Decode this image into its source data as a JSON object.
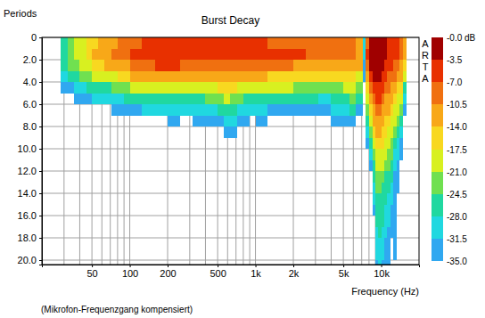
{
  "chart_data": {
    "type": "heatmap",
    "title": "Burst Decay",
    "x_label": "Frequency (Hz)",
    "y_label": "Periods",
    "annotation": "ARTA",
    "footnote": "(Mikrofon-Frequenzgang kompensiert)",
    "log": "x",
    "grid": true,
    "xlim": [
      20,
      20000
    ],
    "xticks": [
      50,
      100,
      200,
      500,
      {
        "value": 1000,
        "label": "1k"
      },
      {
        "value": 2000,
        "label": "2k"
      },
      {
        "value": 5000,
        "label": "5k"
      },
      {
        "value": 10000,
        "label": "10k"
      }
    ],
    "x_minor_ticks": [
      30,
      40,
      60,
      70,
      80,
      90,
      300,
      400,
      600,
      700,
      800,
      900,
      3000,
      4000,
      6000,
      7000,
      8000,
      9000
    ],
    "ylim": [
      0,
      20.4
    ],
    "yticks": [
      0,
      {
        "value": 2,
        "label": "2.0"
      },
      {
        "value": 4,
        "label": "4.0"
      },
      {
        "value": 6,
        "label": "6.0"
      },
      {
        "value": 8,
        "label": "8.0"
      },
      {
        "value": 10,
        "label": "10.0"
      },
      {
        "value": 12,
        "label": "12.0"
      },
      {
        "value": 14,
        "label": "14.0"
      },
      {
        "value": 16,
        "label": "16.0"
      },
      {
        "value": 18,
        "label": "18.0"
      },
      {
        "value": 20,
        "label": "20.0"
      }
    ],
    "freq_edges": [
      28,
      32,
      36,
      40,
      45,
      50,
      56,
      63,
      71,
      80,
      90,
      100,
      125,
      160,
      200,
      250,
      315,
      400,
      500,
      560,
      630,
      710,
      800,
      900,
      1000,
      1250,
      1600,
      2000,
      2500,
      3150,
      4000,
      5000,
      5600,
      6300,
      7100,
      7500,
      8000,
      8500,
      9000,
      9500,
      10000,
      10600,
      11200,
      11800,
      12500,
      13200,
      14000,
      15000,
      16000
    ],
    "period_edges": [
      0,
      1,
      2,
      3,
      4,
      5,
      6,
      7,
      8,
      9,
      10,
      11,
      12,
      13,
      14,
      15,
      16,
      17,
      18,
      19,
      20,
      21
    ],
    "levels": [
      [
        -26,
        -25,
        -27,
        -30,
        -33
      ],
      [
        -23,
        -22,
        -24,
        -28,
        -32
      ],
      [
        -21,
        -20,
        -22,
        -26,
        -30,
        -34
      ],
      [
        -19,
        -18,
        -20,
        -24,
        -29,
        -33
      ],
      [
        -17,
        -16,
        -18,
        -23,
        -28,
        -32
      ],
      [
        -15,
        -14,
        -16,
        -21,
        -27,
        -31
      ],
      [
        -13,
        -12,
        -15,
        -20,
        -26,
        -31
      ],
      [
        -12,
        -11,
        -14,
        -19,
        -25,
        -30
      ],
      [
        -11,
        -10,
        -13,
        -18,
        -24,
        -30,
        -34
      ],
      [
        -10,
        -9,
        -12,
        -17,
        -23,
        -29,
        -33
      ],
      [
        -9,
        -8,
        -11,
        -16,
        -22,
        -28,
        -33
      ],
      [
        -8,
        -6,
        -9,
        -14,
        -20,
        -27,
        -32
      ],
      [
        -7,
        -5,
        -8,
        -13,
        -19,
        -26,
        -31
      ],
      [
        -6,
        -4,
        -7,
        -12,
        -18,
        -25,
        -31
      ],
      [
        -6,
        -4,
        -7,
        -12,
        -18,
        -25,
        -30,
        -34
      ],
      [
        -7,
        -5,
        -8,
        -13,
        -19,
        -26,
        -31
      ],
      [
        -7,
        -5,
        -8,
        -13,
        -19,
        -25,
        -30,
        -34
      ],
      [
        -7,
        -5,
        -8,
        -13,
        -18,
        -24,
        -29,
        -33
      ],
      [
        -7,
        -5,
        -8,
        -12,
        -17,
        -23,
        -28,
        -32
      ],
      [
        -7,
        -5,
        -8,
        -12,
        -16,
        -21,
        -26,
        -30,
        -34
      ],
      [
        -7,
        -5,
        -8,
        -12,
        -17,
        -22,
        -27,
        -31,
        -34
      ],
      [
        -7,
        -5,
        -8,
        -13,
        -18,
        -24,
        -29,
        -33
      ],
      [
        -7,
        -6,
        -9,
        -13,
        -19,
        -25,
        -30,
        -34
      ],
      [
        -7,
        -6,
        -9,
        -14,
        -20,
        -26,
        -31
      ],
      [
        -7,
        -6,
        -9,
        -14,
        -20,
        -26,
        -31,
        -34
      ],
      [
        -8,
        -6,
        -10,
        -15,
        -21,
        -27,
        -32
      ],
      [
        -8,
        -7,
        -10,
        -15,
        -21,
        -27,
        -32
      ],
      [
        -9,
        -7,
        -11,
        -16,
        -22,
        -28,
        -33
      ],
      [
        -9,
        -8,
        -11,
        -16,
        -22,
        -28,
        -33
      ],
      [
        -10,
        -8,
        -12,
        -17,
        -23,
        -29,
        -33
      ],
      [
        -10,
        -9,
        -12,
        -17,
        -22,
        -27,
        -31,
        -34
      ],
      [
        -9,
        -8,
        -11,
        -15,
        -20,
        -25,
        -29,
        -33
      ],
      [
        -9,
        -8,
        -11,
        -15,
        -19,
        -24,
        -28,
        -32
      ],
      [
        -12,
        -11,
        -14,
        -18,
        -23,
        -28,
        -33
      ],
      [
        -31,
        -30,
        -32,
        -34
      ],
      [
        -8,
        -6,
        -8,
        -11,
        -15,
        -19,
        -23,
        -27,
        -31,
        -34
      ],
      [
        -3,
        -2,
        -3,
        -5,
        -8,
        -11,
        -15,
        -19,
        -23,
        -27,
        -30,
        -33
      ],
      [
        -1,
        -1,
        -1,
        -3,
        -5,
        -8,
        -11,
        -14,
        -17,
        -20,
        -23,
        -25,
        -27,
        -29,
        -31,
        -33
      ],
      [
        -1,
        0,
        -1,
        -2,
        -4,
        -6,
        -8,
        -11,
        -13,
        -16,
        -18,
        -20,
        -22,
        -24,
        -26,
        -27,
        -28,
        -29,
        -30,
        -31,
        -32
      ],
      [
        -1,
        -1,
        -2,
        -3,
        -5,
        -7,
        -9,
        -11,
        -14,
        -16,
        -18,
        -20,
        -22,
        -24,
        -25,
        -26,
        -27,
        -28,
        -29,
        -30,
        -31
      ],
      [
        -2,
        -2,
        -3,
        -5,
        -7,
        -9,
        -11,
        -13,
        -15,
        -17,
        -19,
        -21,
        -23,
        -25,
        -26,
        -27,
        -28,
        -29,
        -30,
        -31,
        -32
      ],
      [
        -3,
        -3,
        -5,
        -7,
        -9,
        -11,
        -13,
        -15,
        -17,
        -19,
        -21,
        -23,
        -25,
        -27,
        -28,
        -29,
        -30,
        -31,
        -32,
        -33,
        -34
      ],
      [
        -4,
        -4,
        -6,
        -8,
        -10,
        -12,
        -14,
        -16,
        -18,
        -20,
        -22,
        -24,
        -26,
        -28,
        -29,
        -30,
        -31,
        -32,
        -33,
        -33,
        -34
      ],
      [
        -5,
        -5,
        -7,
        -9,
        -11,
        -13,
        -15,
        -18,
        -20,
        -22,
        -24,
        -26,
        -28,
        -30,
        -31,
        -32,
        -33,
        -34
      ],
      [
        -6,
        -6,
        -8,
        -10,
        -12,
        -15,
        -18,
        -21,
        -24,
        -27,
        -29,
        -31,
        -32,
        -33,
        -33,
        -34,
        -34,
        -34,
        -34,
        -34
      ],
      [
        -7,
        -7,
        -9,
        -12,
        -15,
        -18,
        -21,
        -24,
        -27,
        -29,
        -31,
        -33,
        -34,
        -34
      ],
      [
        -9,
        -9,
        -11,
        -14,
        -17,
        -20,
        -24,
        -27,
        -30,
        -32,
        -34
      ],
      [
        -14,
        -14,
        -17,
        -21,
        -25,
        -29,
        -32
      ]
    ],
    "colorbar": {
      "range": [
        -35,
        0
      ],
      "ticks": [
        {
          "value": 0,
          "label": "-0.0 dB"
        },
        {
          "value": -3.5,
          "label": "-3.5"
        },
        {
          "value": -7,
          "label": "-7.0"
        },
        {
          "value": -10.5,
          "label": "-10.5"
        },
        {
          "value": -14,
          "label": "-14.0"
        },
        {
          "value": -17.5,
          "label": "-17.5"
        },
        {
          "value": -21,
          "label": "-21.0"
        },
        {
          "value": -24.5,
          "label": "-24.5"
        },
        {
          "value": -28,
          "label": "-28.0"
        },
        {
          "value": -31.5,
          "label": "-31.5"
        },
        {
          "value": -35,
          "label": "-35.0"
        }
      ],
      "colors": [
        "#30a8f0",
        "#20d8e0",
        "#20d8a0",
        "#70e050",
        "#d8f020",
        "#f8d820",
        "#f8a818",
        "#f07010",
        "#e83000",
        "#a00000"
      ]
    }
  }
}
